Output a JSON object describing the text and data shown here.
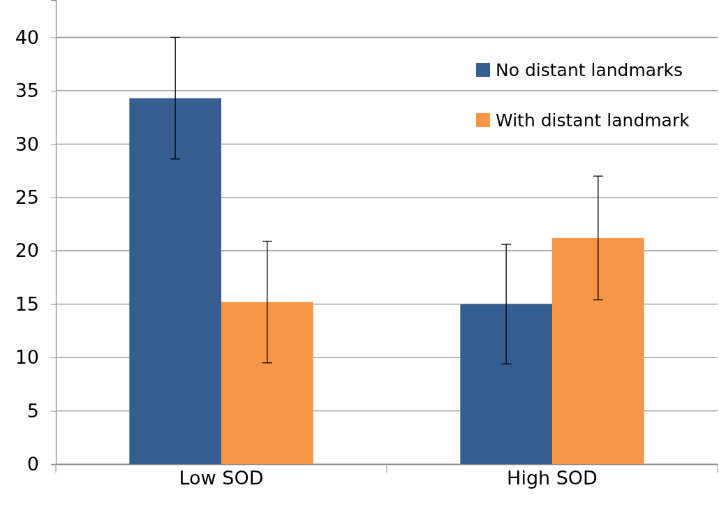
{
  "chart_data": {
    "type": "bar",
    "categories": [
      "Low SOD",
      "High SOD"
    ],
    "series": [
      {
        "name": "No distant landmarks",
        "color": "#365f91",
        "values": [
          34.3,
          15.0
        ],
        "errors": [
          5.7,
          5.6
        ]
      },
      {
        "name": "With distant landmark",
        "color": "#f79646",
        "values": [
          15.2,
          21.2
        ],
        "errors": [
          5.7,
          5.8
        ]
      }
    ],
    "ylim": [
      0,
      43.5
    ],
    "yticks": [
      0,
      5,
      10,
      15,
      20,
      25,
      30,
      35,
      40
    ],
    "grid": "y",
    "legend": "top right"
  }
}
